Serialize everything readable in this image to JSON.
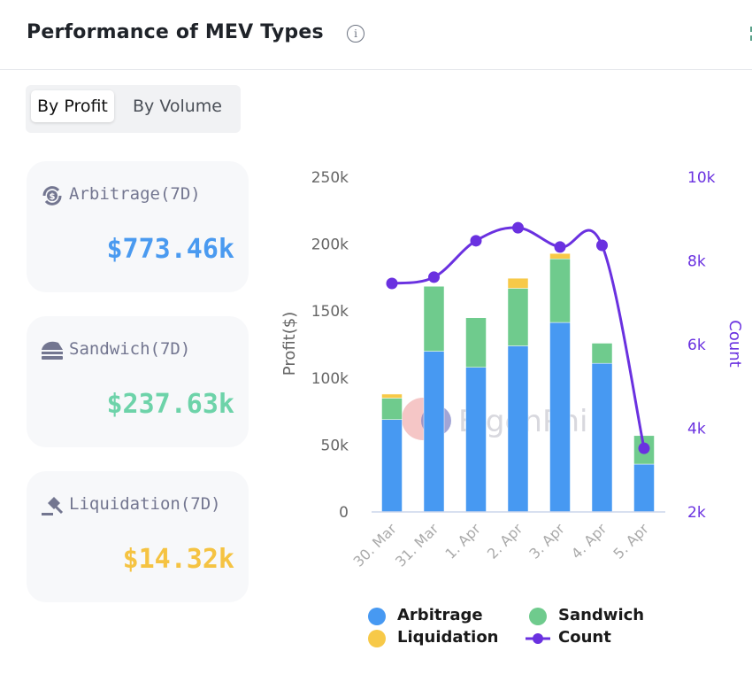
{
  "header": {
    "title": "Performance of MEV Types",
    "info_icon": "info-icon"
  },
  "toggle": {
    "options": [
      "By Profit",
      "By Volume"
    ],
    "selected": "By Profit"
  },
  "cards": [
    {
      "icon": "arbitrage-dollar-icon",
      "label": "Arbitrage(7D)",
      "value": "$773.46k",
      "color": "#4a9af0"
    },
    {
      "icon": "sandwich-icon",
      "label": "Sandwich(7D)",
      "value": "$237.63k",
      "color": "#6dd3a9"
    },
    {
      "icon": "gavel-icon",
      "label": "Liquidation(7D)",
      "value": "$14.32k",
      "color": "#f5c342"
    }
  ],
  "colors": {
    "arbitrage": "#4799f2",
    "sandwich": "#6fcb8d",
    "liquidation": "#f7c948",
    "count": "#6a31e0",
    "axis_text": "#666666",
    "count_axis_text": "#6a31e0"
  },
  "watermark": "EigenPhi",
  "chart_data": {
    "type": "bar",
    "stacked": true,
    "categories": [
      "30. Mar",
      "31. Mar",
      "1. Apr",
      "2. Apr",
      "3. Apr",
      "4. Apr",
      "5. Apr"
    ],
    "series": [
      {
        "name": "Arbitrage",
        "type": "bar",
        "axis": "left",
        "values": [
          69000,
          120000,
          108000,
          124000,
          141500,
          111000,
          35700
        ]
      },
      {
        "name": "Sandwich",
        "type": "bar",
        "axis": "left",
        "values": [
          16000,
          48500,
          37000,
          43000,
          47500,
          15000,
          21300
        ]
      },
      {
        "name": "Liquidation",
        "type": "bar",
        "axis": "left",
        "values": [
          3000,
          0,
          0,
          7500,
          4000,
          0,
          0
        ]
      },
      {
        "name": "Count",
        "type": "line",
        "axis": "right",
        "values": [
          7460,
          7610,
          8480,
          8790,
          8330,
          8370,
          3520
        ]
      }
    ],
    "ylabel": "Profit($)",
    "y2label": "Count",
    "ylim": [
      0,
      250000
    ],
    "y2lim": [
      2000,
      10000
    ],
    "yticks": [
      "0",
      "50k",
      "100k",
      "150k",
      "200k",
      "250k"
    ],
    "y2ticks": [
      "2k",
      "4k",
      "6k",
      "8k",
      "10k"
    ],
    "legend": [
      "Arbitrage",
      "Sandwich",
      "Liquidation",
      "Count"
    ],
    "legend_position": "bottom",
    "grid": false
  }
}
